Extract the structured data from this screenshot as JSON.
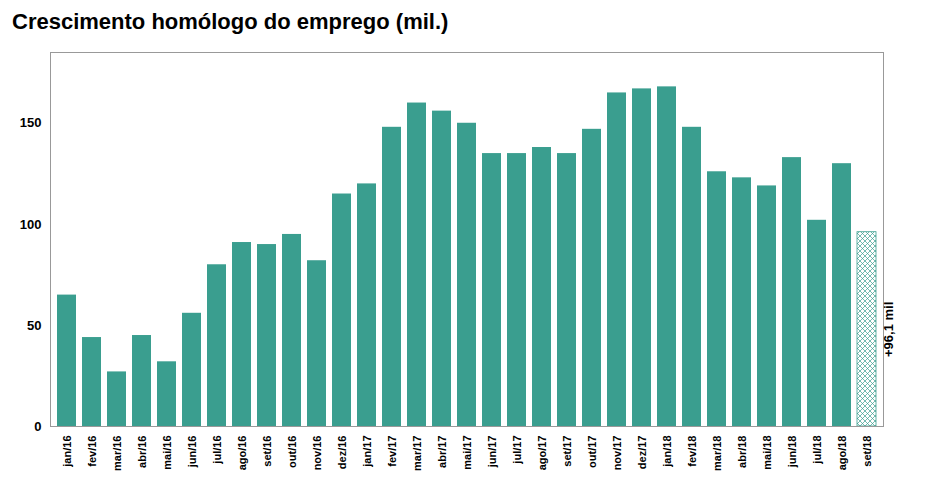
{
  "chart_data": {
    "type": "bar",
    "title": "Crescimento homólogo do emprego (mil.)",
    "categories": [
      "jan/16",
      "fev/16",
      "mar/16",
      "abr/16",
      "mai/16",
      "jun/16",
      "jul/16",
      "ago/16",
      "set/16",
      "out/16",
      "nov/16",
      "dez/16",
      "jan/17",
      "fev/17",
      "mar/17",
      "abr/17",
      "mai/17",
      "jun/17",
      "jul/17",
      "ago/17",
      "set/17",
      "out/17",
      "nov/17",
      "dez/17",
      "jan/18",
      "fev/18",
      "mar/18",
      "abr/18",
      "mai/18",
      "jun/18",
      "jul/18",
      "ago/18",
      "set/18"
    ],
    "values": [
      65,
      44,
      27,
      45,
      32,
      56,
      80,
      91,
      90,
      95,
      82,
      115,
      120,
      148,
      160,
      156,
      150,
      135,
      135,
      138,
      135,
      147,
      165,
      167,
      168,
      148,
      126,
      123,
      119,
      133,
      102,
      130,
      96.1
    ],
    "color": "#3a9e8f",
    "ylim": [
      0,
      185
    ],
    "yticks": [
      0,
      50,
      100,
      150
    ],
    "grid": false,
    "annotation": "+96,1 mil"
  }
}
